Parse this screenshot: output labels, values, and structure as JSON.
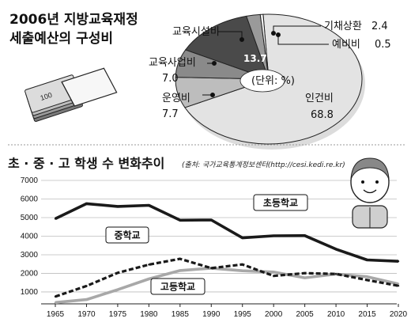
{
  "chart_data": [
    {
      "type": "pie",
      "title_line1": "2006년 지방교육재정",
      "title_line2": "세출예산의 구성비",
      "unit_label": "(단위: %)",
      "slices": [
        {
          "label": "인건비",
          "value": 68.8,
          "value_text": "68.8",
          "color": "#e3e3e3"
        },
        {
          "label": "운영비",
          "value": 7.7,
          "value_text": "7.7",
          "color": "#bdbdbd"
        },
        {
          "label": "교육사업비",
          "value": 7.0,
          "value_text": "7.0",
          "color": "#8a8a8a"
        },
        {
          "label": "교육시설비",
          "value": 13.7,
          "value_text": "13.7",
          "color": "#4a4a4a"
        },
        {
          "label": "기채상환",
          "value": 2.4,
          "value_text": "2.4",
          "color": "#9a9a9a"
        },
        {
          "label": "예비비",
          "value": 0.5,
          "value_text": "0.5",
          "color": "#f2f2f2"
        }
      ]
    },
    {
      "type": "line",
      "title": "초 · 중 · 고 학생 수 변화추이",
      "source": "(출처: 국가교육통계정보센터(http://cesi.kedi.re.kr)",
      "x": [
        1965,
        1970,
        1975,
        1980,
        1985,
        1990,
        1995,
        2000,
        2005,
        2010,
        2015,
        2020
      ],
      "x_tick_labels": [
        "1965",
        "1970",
        "1975",
        "1980",
        "1985",
        "1990",
        "1995",
        "2000",
        "2005",
        "2010",
        "2015",
        "2020"
      ],
      "y_ticks": [
        1000,
        2000,
        3000,
        4000,
        5000,
        6000,
        7000
      ],
      "y_tick_labels": [
        "1000",
        "2000",
        "3000",
        "4000",
        "5000",
        "6000",
        "7000"
      ],
      "ylim": [
        700,
        7000
      ],
      "xlim": [
        1965,
        2020
      ],
      "grid": true,
      "series": [
        {
          "name": "초등학교",
          "color": "#1a1a1a",
          "style": "solid",
          "values": [
            4940,
            5750,
            5600,
            5660,
            4860,
            4870,
            3910,
            4020,
            4030,
            3300,
            2720,
            2650
          ]
        },
        {
          "name": "중학교",
          "color": "#1a1a1a",
          "style": "dashed",
          "values": [
            750,
            1320,
            2030,
            2470,
            2780,
            2280,
            2480,
            1860,
            2010,
            1970,
            1640,
            1330
          ]
        },
        {
          "name": "고등학교",
          "color": "#a8a8a8",
          "style": "solid",
          "values": [
            430,
            590,
            1120,
            1700,
            2150,
            2280,
            2140,
            2070,
            1760,
            1960,
            1820,
            1430
          ]
        }
      ]
    }
  ]
}
